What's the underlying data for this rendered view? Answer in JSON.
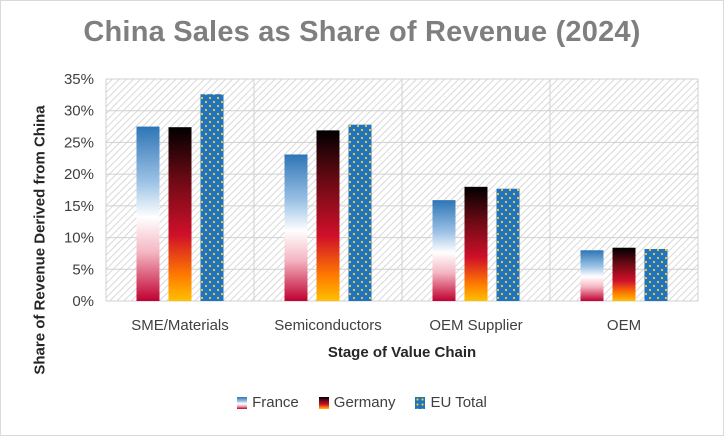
{
  "chart_data": {
    "type": "bar",
    "title": "China Sales as Share of Revenue (2024)",
    "xlabel": "Stage of Value Chain",
    "ylabel": "Share of Revenue Derived from China",
    "categories": [
      "SME/Materials",
      "Semiconductors",
      "OEM Supplier",
      "OEM"
    ],
    "series": [
      {
        "name": "France",
        "values": [
          27.5,
          23.1,
          15.9,
          8.0
        ]
      },
      {
        "name": "Germany",
        "values": [
          27.4,
          26.9,
          18.0,
          8.4
        ]
      },
      {
        "name": "EU Total",
        "values": [
          32.6,
          27.8,
          17.7,
          8.2
        ]
      }
    ],
    "ylim": [
      0,
      35
    ],
    "yticks": [
      0,
      5,
      10,
      15,
      20,
      25,
      30,
      35
    ],
    "ytick_labels": [
      "0%",
      "5%",
      "10%",
      "15%",
      "20%",
      "25%",
      "30%",
      "35%"
    ],
    "grid": true,
    "legend_position": "bottom",
    "colors": {
      "france_top": "#2e75b6",
      "france_bottom": "#c00030",
      "germany_top": "#000000",
      "germany_bottom": "#ffc000",
      "eu_fill": "#1f73c4",
      "eu_stars": "#ffd000",
      "title": "#7f7f7f",
      "hatch": "#d0d0d0"
    }
  }
}
